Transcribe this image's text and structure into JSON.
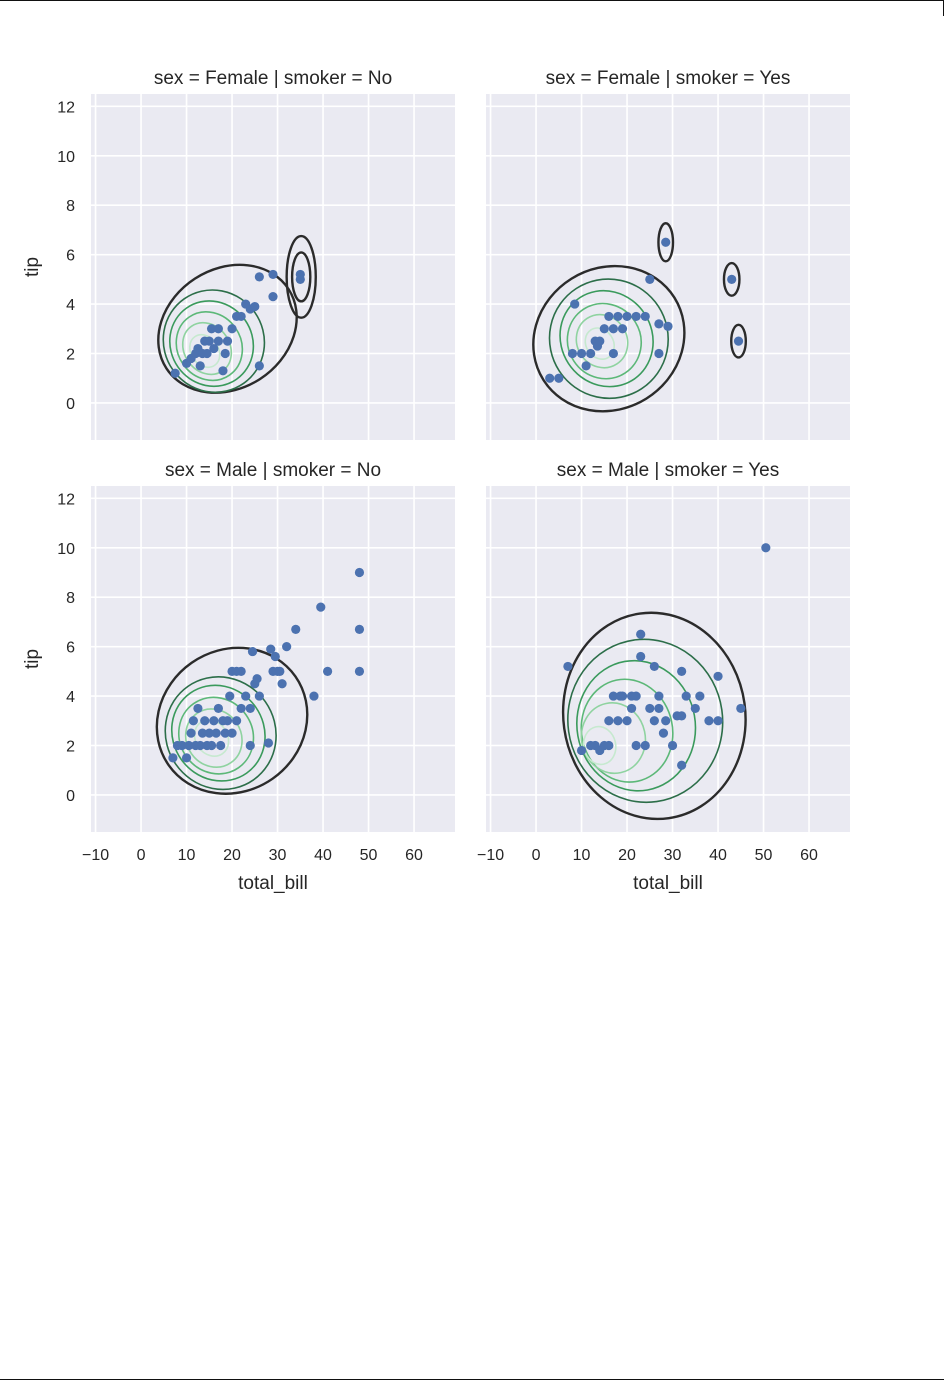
{
  "chart_data": {
    "type": "scatter",
    "layout": "2x2 facet grid, shared axes",
    "xlabel": "total_bill",
    "ylabel": "tip",
    "xlim": [
      -11,
      69
    ],
    "ylim": [
      -1.5,
      12.5
    ],
    "xticks": [
      -10,
      0,
      10,
      20,
      30,
      40,
      50,
      60
    ],
    "yticks": [
      0,
      2,
      4,
      6,
      8,
      10,
      12
    ],
    "grid": true,
    "background": "#EAEAF2",
    "grid_color": "#ffffff",
    "point_color": "#4C72B0",
    "kde_colors": [
      "#2b2b2b",
      "#2c6e49",
      "#3a9a5c",
      "#5cb878",
      "#8fd3a0",
      "#c6e9cf"
    ],
    "kde_overlay": "bivariate KDE contours (Greens colormap)",
    "panels": [
      {
        "title": "sex = Female | smoker = No",
        "points": [
          [
            7.5,
            1.2
          ],
          [
            10,
            1.6
          ],
          [
            11,
            1.8
          ],
          [
            12,
            2.0
          ],
          [
            12.5,
            2.2
          ],
          [
            13,
            1.5
          ],
          [
            13.5,
            2.0
          ],
          [
            14,
            2.5
          ],
          [
            14.5,
            2.0
          ],
          [
            15,
            2.5
          ],
          [
            15.5,
            3.0
          ],
          [
            16,
            2.2
          ],
          [
            17,
            2.5
          ],
          [
            17,
            3.0
          ],
          [
            18,
            1.3
          ],
          [
            18.5,
            2.0
          ],
          [
            19,
            2.5
          ],
          [
            20,
            3.0
          ],
          [
            21,
            3.5
          ],
          [
            22,
            3.5
          ],
          [
            23,
            4.0
          ],
          [
            24,
            3.8
          ],
          [
            25,
            3.9
          ],
          [
            26,
            1.5
          ],
          [
            26,
            5.1
          ],
          [
            29,
            5.2
          ],
          [
            29,
            4.3
          ],
          [
            35,
            5.2
          ],
          [
            35,
            5.0
          ]
        ]
      },
      {
        "title": "sex = Female | smoker = Yes",
        "points": [
          [
            3,
            1.0
          ],
          [
            5,
            1.0
          ],
          [
            8,
            2.0
          ],
          [
            8.5,
            4.0
          ],
          [
            10,
            2.0
          ],
          [
            11,
            1.5
          ],
          [
            12,
            2.0
          ],
          [
            13,
            2.5
          ],
          [
            13.5,
            2.3
          ],
          [
            14,
            2.5
          ],
          [
            15,
            3.0
          ],
          [
            16,
            3.5
          ],
          [
            17,
            2.0
          ],
          [
            17,
            3.0
          ],
          [
            18,
            3.5
          ],
          [
            19,
            3.0
          ],
          [
            20,
            3.5
          ],
          [
            22,
            3.5
          ],
          [
            24,
            3.5
          ],
          [
            25,
            5.0
          ],
          [
            27,
            2.0
          ],
          [
            27,
            3.2
          ],
          [
            29,
            3.1
          ],
          [
            28.5,
            6.5
          ],
          [
            43,
            5.0
          ],
          [
            44.5,
            2.5
          ]
        ]
      },
      {
        "title": "sex = Male | smoker = No",
        "points": [
          [
            7,
            1.5
          ],
          [
            8,
            2.0
          ],
          [
            9,
            2.0
          ],
          [
            10,
            1.5
          ],
          [
            10.5,
            2.0
          ],
          [
            11,
            2.5
          ],
          [
            11.5,
            3.0
          ],
          [
            12,
            2.0
          ],
          [
            12.5,
            3.5
          ],
          [
            13,
            2.0
          ],
          [
            13.5,
            2.5
          ],
          [
            14,
            3.0
          ],
          [
            14.5,
            2.0
          ],
          [
            15,
            2.5
          ],
          [
            15.5,
            2.0
          ],
          [
            16,
            3.0
          ],
          [
            16.5,
            2.5
          ],
          [
            17,
            3.5
          ],
          [
            17.5,
            2.0
          ],
          [
            18,
            3.0
          ],
          [
            18.5,
            2.5
          ],
          [
            19,
            3.0
          ],
          [
            19.5,
            4.0
          ],
          [
            20,
            2.5
          ],
          [
            20,
            5.0
          ],
          [
            21,
            3.0
          ],
          [
            21,
            5.0
          ],
          [
            22,
            3.5
          ],
          [
            22,
            5.0
          ],
          [
            23,
            4.0
          ],
          [
            24,
            2.0
          ],
          [
            24,
            3.5
          ],
          [
            24.5,
            5.8
          ],
          [
            25,
            4.5
          ],
          [
            25.5,
            4.7
          ],
          [
            26,
            4.0
          ],
          [
            28,
            2.1
          ],
          [
            28.5,
            5.9
          ],
          [
            29,
            5.0
          ],
          [
            29.5,
            5.6
          ],
          [
            30,
            5.0
          ],
          [
            30.5,
            5.0
          ],
          [
            31,
            4.5
          ],
          [
            32,
            6.0
          ],
          [
            34,
            6.7
          ],
          [
            38,
            4.0
          ],
          [
            39.5,
            7.6
          ],
          [
            41,
            5.0
          ],
          [
            48,
            9.0
          ],
          [
            48,
            6.7
          ],
          [
            48,
            5.0
          ]
        ]
      },
      {
        "title": "sex = Male | smoker = Yes",
        "points": [
          [
            7,
            5.2
          ],
          [
            10,
            1.8
          ],
          [
            12,
            2.0
          ],
          [
            13,
            2.0
          ],
          [
            14,
            1.8
          ],
          [
            15,
            2.0
          ],
          [
            16,
            2.0
          ],
          [
            16,
            3.0
          ],
          [
            17,
            4.0
          ],
          [
            18,
            3.0
          ],
          [
            18.5,
            4.0
          ],
          [
            19,
            4.0
          ],
          [
            20,
            3.0
          ],
          [
            21,
            3.5
          ],
          [
            21,
            4.0
          ],
          [
            22,
            2.0
          ],
          [
            22,
            4.0
          ],
          [
            23,
            6.5
          ],
          [
            23,
            5.6
          ],
          [
            24,
            2.0
          ],
          [
            25,
            3.5
          ],
          [
            26,
            5.2
          ],
          [
            26,
            3.0
          ],
          [
            27,
            4.0
          ],
          [
            27,
            3.5
          ],
          [
            28,
            2.5
          ],
          [
            28.5,
            3.0
          ],
          [
            30,
            2.0
          ],
          [
            31,
            3.2
          ],
          [
            32,
            3.2
          ],
          [
            32,
            1.2
          ],
          [
            32,
            5.0
          ],
          [
            33,
            4.0
          ],
          [
            35,
            3.5
          ],
          [
            36,
            4.0
          ],
          [
            38,
            3.0
          ],
          [
            40,
            4.8
          ],
          [
            40,
            3.0
          ],
          [
            45,
            3.5
          ],
          [
            50.5,
            10.0
          ]
        ]
      }
    ]
  }
}
